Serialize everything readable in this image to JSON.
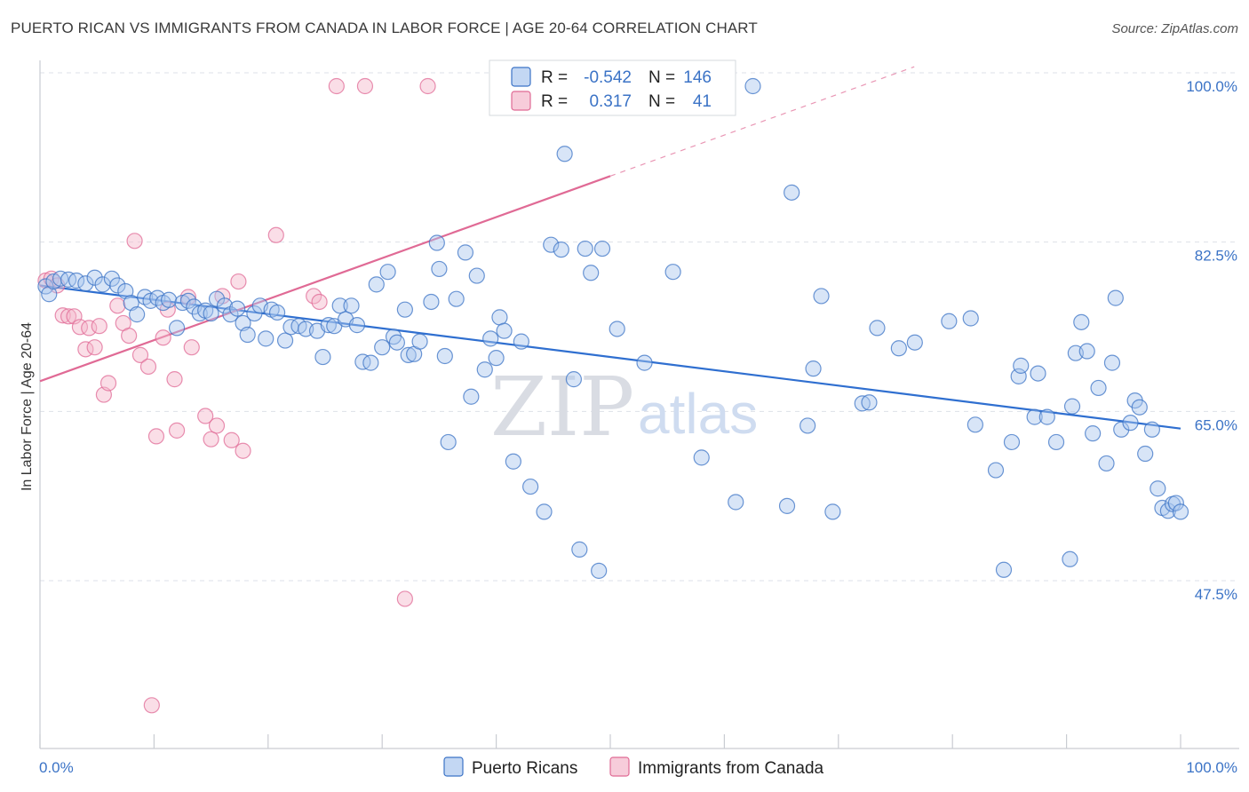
{
  "title": "PUERTO RICAN VS IMMIGRANTS FROM CANADA IN LABOR FORCE | AGE 20-64 CORRELATION CHART",
  "source": "Source: ZipAtlas.com",
  "watermark": {
    "zip": "ZIP",
    "atlas": "atlas"
  },
  "legend": {
    "r_label": "R =",
    "n_label": "N =",
    "series": [
      {
        "r": "-0.542",
        "n": "146"
      },
      {
        "r": "0.317",
        "n": "41"
      }
    ]
  },
  "colors": {
    "blue": "#3b73c6",
    "blue_fill": "#a9c6ee",
    "blue_line": "#2f6fd0",
    "pink": "#e06a95",
    "pink_fill": "#f4b6ca",
    "grid": "#dde1e8"
  },
  "chart_data": {
    "type": "scatter",
    "title": "PUERTO RICAN VS IMMIGRANTS FROM CANADA IN LABOR FORCE | AGE 20-64 CORRELATION CHART",
    "xlabel": "",
    "ylabel": "In Labor Force | Age 20-64",
    "xlim": [
      0,
      100
    ],
    "ylim": [
      30,
      102
    ],
    "x_tick_labels": [
      "0.0%",
      "100.0%"
    ],
    "y_ticks": [
      47.5,
      65.0,
      82.5,
      100.0
    ],
    "y_tick_labels": [
      "47.5%",
      "65.0%",
      "82.5%",
      "100.0%"
    ],
    "grid": "horizontal dashed",
    "legend_position": "top-center",
    "series": [
      {
        "name": "Puerto Ricans",
        "trend": {
          "x": [
            0,
            100
          ],
          "y": [
            79.4,
            64.6
          ],
          "dashed_from": null
        },
        "points": [
          [
            0.5,
            79.3
          ],
          [
            0.8,
            78.5
          ],
          [
            1.2,
            79.8
          ],
          [
            1.8,
            80.1
          ],
          [
            2.5,
            80.0
          ],
          [
            3.2,
            79.9
          ],
          [
            4.0,
            79.6
          ],
          [
            4.8,
            80.2
          ],
          [
            5.5,
            79.5
          ],
          [
            6.3,
            80.1
          ],
          [
            6.8,
            79.4
          ],
          [
            7.5,
            78.8
          ],
          [
            8.0,
            77.6
          ],
          [
            8.5,
            76.4
          ],
          [
            9.2,
            78.2
          ],
          [
            9.7,
            77.8
          ],
          [
            10.3,
            78.1
          ],
          [
            10.8,
            77.6
          ],
          [
            11.3,
            77.9
          ],
          [
            12.0,
            75.0
          ],
          [
            12.5,
            77.6
          ],
          [
            13.0,
            77.8
          ],
          [
            13.5,
            77.2
          ],
          [
            14.0,
            76.5
          ],
          [
            14.5,
            76.8
          ],
          [
            15.0,
            76.5
          ],
          [
            15.5,
            78.0
          ],
          [
            16.2,
            77.3
          ],
          [
            16.7,
            76.4
          ],
          [
            17.3,
            77.0
          ],
          [
            17.8,
            75.5
          ],
          [
            18.2,
            74.3
          ],
          [
            18.8,
            76.5
          ],
          [
            19.3,
            77.3
          ],
          [
            19.8,
            73.9
          ],
          [
            20.3,
            76.9
          ],
          [
            20.8,
            76.6
          ],
          [
            21.5,
            73.7
          ],
          [
            22.0,
            75.1
          ],
          [
            22.7,
            75.2
          ],
          [
            23.3,
            74.9
          ],
          [
            24.3,
            74.7
          ],
          [
            24.8,
            72.0
          ],
          [
            25.3,
            75.3
          ],
          [
            25.8,
            75.2
          ],
          [
            26.3,
            77.3
          ],
          [
            26.8,
            75.9
          ],
          [
            27.3,
            77.3
          ],
          [
            27.8,
            75.3
          ],
          [
            28.3,
            71.5
          ],
          [
            29.0,
            71.4
          ],
          [
            29.5,
            79.5
          ],
          [
            30.0,
            73.0
          ],
          [
            30.5,
            80.8
          ],
          [
            31.0,
            74.1
          ],
          [
            31.3,
            73.5
          ],
          [
            32.0,
            76.9
          ],
          [
            32.3,
            72.2
          ],
          [
            32.8,
            72.3
          ],
          [
            33.3,
            73.6
          ],
          [
            34.3,
            77.7
          ],
          [
            34.8,
            83.8
          ],
          [
            35.0,
            81.1
          ],
          [
            35.5,
            72.1
          ],
          [
            35.8,
            63.2
          ],
          [
            36.5,
            78.0
          ],
          [
            37.3,
            82.8
          ],
          [
            37.8,
            67.9
          ],
          [
            38.3,
            80.4
          ],
          [
            39.0,
            70.7
          ],
          [
            39.5,
            73.9
          ],
          [
            40.0,
            71.9
          ],
          [
            40.3,
            76.1
          ],
          [
            40.7,
            74.7
          ],
          [
            41.5,
            61.2
          ],
          [
            42.2,
            73.6
          ],
          [
            43.0,
            58.6
          ],
          [
            44.2,
            56.0
          ],
          [
            44.8,
            83.6
          ],
          [
            45.7,
            83.1
          ],
          [
            46.0,
            93.0
          ],
          [
            46.8,
            69.7
          ],
          [
            47.3,
            52.1
          ],
          [
            47.8,
            83.2
          ],
          [
            48.3,
            80.7
          ],
          [
            49.0,
            49.9
          ],
          [
            49.3,
            83.2
          ],
          [
            50.6,
            74.9
          ],
          [
            53.0,
            71.4
          ],
          [
            55.5,
            80.8
          ],
          [
            58.0,
            61.6
          ],
          [
            60.0,
            100.0
          ],
          [
            61.0,
            57.0
          ],
          [
            62.5,
            100.0
          ],
          [
            65.5,
            56.6
          ],
          [
            65.9,
            89.0
          ],
          [
            67.3,
            64.9
          ],
          [
            67.8,
            70.8
          ],
          [
            68.5,
            78.3
          ],
          [
            69.5,
            56.0
          ],
          [
            72.1,
            67.2
          ],
          [
            72.7,
            67.3
          ],
          [
            73.4,
            75.0
          ],
          [
            75.3,
            72.9
          ],
          [
            76.7,
            73.5
          ],
          [
            79.7,
            75.7
          ],
          [
            81.6,
            76.0
          ],
          [
            82.0,
            65.0
          ],
          [
            83.8,
            60.3
          ],
          [
            84.5,
            50.0
          ],
          [
            85.2,
            63.2
          ],
          [
            85.8,
            70.0
          ],
          [
            86.0,
            71.1
          ],
          [
            87.2,
            65.8
          ],
          [
            87.5,
            70.3
          ],
          [
            88.3,
            65.8
          ],
          [
            89.1,
            63.2
          ],
          [
            90.3,
            51.1
          ],
          [
            90.5,
            66.9
          ],
          [
            90.8,
            72.4
          ],
          [
            91.3,
            75.6
          ],
          [
            91.8,
            72.6
          ],
          [
            92.3,
            64.1
          ],
          [
            92.8,
            68.8
          ],
          [
            93.5,
            61.0
          ],
          [
            94.0,
            71.4
          ],
          [
            94.3,
            78.1
          ],
          [
            94.8,
            64.5
          ],
          [
            95.6,
            65.2
          ],
          [
            96.0,
            67.5
          ],
          [
            96.4,
            66.8
          ],
          [
            96.9,
            62.0
          ],
          [
            97.5,
            64.5
          ],
          [
            98.0,
            58.4
          ],
          [
            98.4,
            56.4
          ],
          [
            98.9,
            56.1
          ],
          [
            99.3,
            56.8
          ],
          [
            99.6,
            56.9
          ],
          [
            100.0,
            56.0
          ]
        ]
      },
      {
        "name": "Immigrants from Canada",
        "trend": {
          "x": [
            0,
            100
          ],
          "y": [
            69.5,
            111.9
          ],
          "dashed_from": 50
        },
        "points": [
          [
            0.5,
            79.9
          ],
          [
            1.0,
            80.1
          ],
          [
            1.5,
            79.4
          ],
          [
            2.0,
            76.3
          ],
          [
            2.5,
            76.2
          ],
          [
            3.0,
            76.2
          ],
          [
            3.5,
            75.1
          ],
          [
            4.0,
            72.8
          ],
          [
            4.3,
            75.0
          ],
          [
            4.8,
            73.0
          ],
          [
            5.2,
            75.2
          ],
          [
            5.6,
            68.1
          ],
          [
            6.0,
            69.3
          ],
          [
            6.8,
            77.3
          ],
          [
            7.3,
            75.5
          ],
          [
            7.8,
            74.2
          ],
          [
            8.3,
            84.0
          ],
          [
            8.8,
            72.2
          ],
          [
            9.5,
            71.0
          ],
          [
            9.8,
            36.0
          ],
          [
            10.2,
            63.8
          ],
          [
            10.8,
            74.0
          ],
          [
            11.2,
            76.9
          ],
          [
            11.8,
            69.7
          ],
          [
            12.0,
            64.4
          ],
          [
            13.0,
            78.2
          ],
          [
            13.3,
            73.0
          ],
          [
            14.5,
            65.9
          ],
          [
            15.0,
            63.5
          ],
          [
            15.5,
            64.9
          ],
          [
            16.0,
            78.3
          ],
          [
            16.8,
            63.4
          ],
          [
            17.4,
            79.8
          ],
          [
            17.8,
            62.3
          ],
          [
            20.7,
            84.6
          ],
          [
            24.0,
            78.3
          ],
          [
            24.5,
            77.7
          ],
          [
            26.0,
            100.0
          ],
          [
            28.5,
            100.0
          ],
          [
            32.0,
            47.0
          ],
          [
            34.0,
            100.0
          ]
        ]
      }
    ]
  }
}
